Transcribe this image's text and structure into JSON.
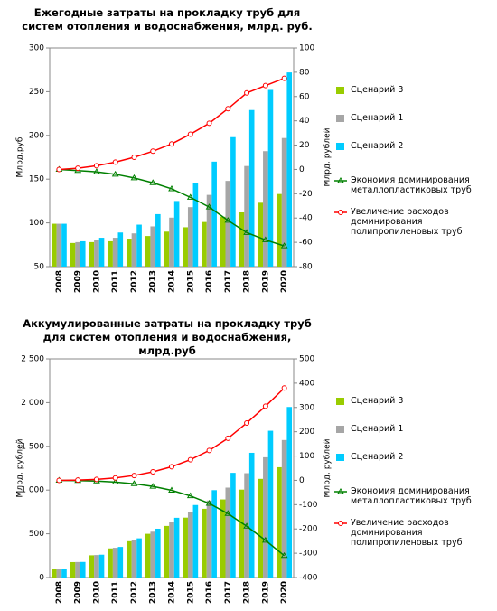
{
  "chart_data": [
    {
      "type": "bar",
      "title": "Ежегодные затраты на прокладку труб для систем отопления и водоснабжения, млрд. руб.",
      "y_label": "Млрд.руб",
      "y2_label": "Млрд. рублей",
      "categories": [
        "2008",
        "2009",
        "2010",
        "2011",
        "2012",
        "2013",
        "2014",
        "2015",
        "2016",
        "2017",
        "2018",
        "2019",
        "2020"
      ],
      "ylim": [
        50,
        300
      ],
      "yticks": [
        50,
        100,
        150,
        200,
        250,
        300
      ],
      "y2lim": [
        -80,
        100
      ],
      "y2ticks": [
        -80,
        -60,
        -40,
        -20,
        0,
        20,
        40,
        60,
        80,
        100
      ],
      "series": [
        {
          "name": "Сценарий 3",
          "color": "#99cc00",
          "values": [
            99,
            77,
            78,
            79,
            82,
            85,
            90,
            95,
            101,
            107,
            112,
            123,
            133
          ]
        },
        {
          "name": "Сценарий 1",
          "color": "#a6a6a6",
          "values": [
            99,
            78,
            80,
            83,
            88,
            96,
            106,
            118,
            132,
            148,
            165,
            182,
            197
          ]
        },
        {
          "name": "Сценарий 2",
          "color": "#00ccff",
          "values": [
            99,
            79,
            83,
            89,
            98,
            110,
            125,
            146,
            170,
            198,
            229,
            252,
            272
          ]
        },
        {
          "name": "Экономия доминирования металлопластиковых труб",
          "color": "#008000",
          "type": "line",
          "axis": "y2",
          "marker": "triangle",
          "values": [
            0,
            -1,
            -2,
            -4,
            -7,
            -11,
            -16,
            -23,
            -31,
            -42,
            -52,
            -58,
            -63
          ]
        },
        {
          "name": "Увеличение расходов доминирования полипропиленовых труб",
          "color": "#ff0000",
          "type": "line",
          "axis": "y2",
          "marker": "circle",
          "values": [
            0,
            1,
            3,
            6,
            10,
            15,
            21,
            29,
            38,
            50,
            63,
            69,
            75
          ]
        }
      ]
    },
    {
      "type": "bar",
      "title": "Аккумулированные затраты на прокладку труб для систем отопления и водоснабжения, млрд.руб",
      "y_label": "Млрд. рублей",
      "y2_label": "Млрд. рублей",
      "categories": [
        "2008",
        "2009",
        "2010",
        "2011",
        "2012",
        "2013",
        "2014",
        "2015",
        "2016",
        "2017",
        "2018",
        "2019",
        "2020"
      ],
      "ylim": [
        0,
        2500
      ],
      "yticks": [
        0,
        500,
        {
          "value": 1000,
          "label": "1 000"
        },
        {
          "value": 1500,
          "label": "1 500"
        },
        {
          "value": 2000,
          "label": "2 000"
        },
        {
          "value": 2500,
          "label": "2 500"
        }
      ],
      "y2lim": [
        -400,
        500
      ],
      "y2ticks": [
        -400,
        -300,
        -200,
        -100,
        0,
        100,
        200,
        300,
        400,
        500
      ],
      "series": [
        {
          "name": "Сценарий 3",
          "color": "#99cc00",
          "values": [
            99,
            176,
            254,
            333,
            415,
            500,
            590,
            685,
            786,
            893,
            1005,
            1128,
            1261
          ]
        },
        {
          "name": "Сценарий 1",
          "color": "#a6a6a6",
          "values": [
            99,
            177,
            257,
            340,
            428,
            524,
            630,
            748,
            880,
            1028,
            1193,
            1375,
            1572
          ]
        },
        {
          "name": "Сценарий 2",
          "color": "#00ccff",
          "values": [
            99,
            178,
            261,
            350,
            448,
            558,
            683,
            829,
            999,
            1197,
            1426,
            1678,
            1950
          ]
        },
        {
          "name": "Экономия доминирования металлопластиковых труб",
          "color": "#008000",
          "type": "line",
          "axis": "y2",
          "marker": "triangle",
          "values": [
            0,
            -1,
            -3,
            -7,
            -14,
            -25,
            -41,
            -64,
            -95,
            -137,
            -189,
            -247,
            -310
          ]
        },
        {
          "name": "Увеличение расходов доминирования полипропиленовых труб",
          "color": "#ff0000",
          "type": "line",
          "axis": "y2",
          "marker": "circle",
          "values": [
            0,
            1,
            4,
            10,
            20,
            35,
            56,
            85,
            123,
            173,
            236,
            305,
            380
          ]
        }
      ]
    }
  ]
}
